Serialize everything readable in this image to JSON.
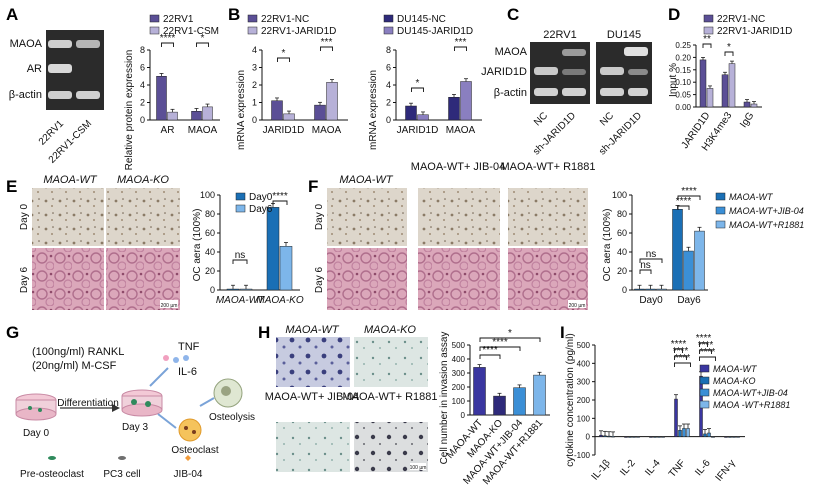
{
  "panels": [
    "A",
    "B",
    "C",
    "D",
    "E",
    "F",
    "G",
    "H",
    "I"
  ],
  "colors": {
    "dark_purple": "#5b4f96",
    "light_purple": "#b7b1d8",
    "mid_purple": "#8a7fc0",
    "navy": "#2e2a7a",
    "blue_dark": "#1a6fb5",
    "blue_mid": "#3b8fd6",
    "blue_light": "#7db6ea",
    "indigo": "#3a36a0",
    "wb_bg": "#2b2b2b",
    "tissue_pink": "#d9a3b7",
    "micro_bg": "#d8d2c7",
    "transwell_bg": "#c9cde0"
  },
  "A": {
    "blot_rows": [
      "MAOA",
      "AR",
      "β-actin"
    ],
    "lanes": [
      "22RV1",
      "22RV1-CSM"
    ],
    "legend": [
      "22RV1",
      "22RV1-CSM"
    ],
    "ylabel": "Relative protein expression",
    "sig": [
      "****",
      "*"
    ]
  },
  "B": {
    "left_legend": [
      "22RV1-NC",
      "22RV1-JARID1D"
    ],
    "right_legend": [
      "DU145-NC",
      "DU145-JARID1D"
    ],
    "ylabel": "mRNA expression",
    "left_sig": [
      "*",
      "***"
    ],
    "right_sig": [
      "*",
      "***"
    ]
  },
  "C": {
    "headers": [
      "22RV1",
      "DU145"
    ],
    "blot_rows": [
      "MAOA",
      "JARID1D",
      "β-actin"
    ],
    "lanes": [
      "NC",
      "sh-JARID1D",
      "NC",
      "sh-JARID1D"
    ]
  },
  "D": {
    "legend": [
      "22RV1-NC",
      "22RV1-JARID1D"
    ],
    "ylabel": "Input %",
    "sig": [
      "**",
      "*"
    ]
  },
  "E": {
    "col_titles": [
      "MAOA-WT",
      "MAOA-KO"
    ],
    "row_labels": [
      "Day 0",
      "Day 6"
    ],
    "scale": "200 µm",
    "legend": [
      "Day0",
      "Day6"
    ],
    "ylabel": "OC aera (100%)",
    "sig": [
      "ns",
      "****"
    ]
  },
  "F": {
    "col_titles": [
      "MAOA-WT",
      "MAOA-WT+ JIB-04",
      "MAOA-WT+ R1881"
    ],
    "row_labels": [
      "Day 0",
      "Day 6"
    ],
    "scale": "200 µm",
    "legend": [
      "MAOA-WT",
      "MAOA-WT+JIB-04",
      "MAOA-WT+R1881"
    ],
    "ylabel": "OC aera (100%)",
    "sig": [
      "ns",
      "ns",
      "****",
      "****"
    ]
  },
  "G": {
    "lines": [
      "(100ng/ml) RANKL",
      "(20ng/ml) M-CSF"
    ],
    "tnf": "TNF",
    "il6": "IL-6",
    "differentiation": "Differentiation",
    "day0": "Day 0",
    "day3": "Day 3",
    "osteolysis": "Osteolysis",
    "osteoclast": "Osteoclast",
    "legend": [
      "Pre-osteoclast",
      "PC3 cell",
      "JIB-04"
    ]
  },
  "H": {
    "titles": [
      "MAOA-WT",
      "MAOA-KO",
      "MAOA-WT+ JIB-04",
      "MAOA-WT+ R1881"
    ],
    "scale": "100 µm",
    "ylabel": "Cell number in invasion assay",
    "sig": [
      "*",
      "****",
      "****"
    ]
  },
  "I": {
    "legend": [
      "MAOA-WT",
      "MAOA-KO",
      "MAOA-WT+JIB-04",
      "MAOA -WT+R1881"
    ],
    "ylabel": "cytokine concentration (pg/ml)",
    "sig": [
      "****",
      "****",
      "****",
      "****",
      "****",
      "****"
    ]
  },
  "chart_data": [
    {
      "panel": "A",
      "type": "bar",
      "categories": [
        "AR",
        "MAOA"
      ],
      "series": [
        {
          "name": "22RV1",
          "values": [
            5.0,
            1.0
          ]
        },
        {
          "name": "22RV1-CSM",
          "values": [
            0.9,
            1.5
          ]
        }
      ],
      "ylim": [
        0,
        8
      ],
      "yticks": [
        0,
        2,
        4,
        6,
        8
      ],
      "ylabel": "Relative protein expression"
    },
    {
      "panel": "B-left",
      "type": "bar",
      "categories": [
        "JARID1D",
        "MAOA"
      ],
      "series": [
        {
          "name": "22RV1-NC",
          "values": [
            1.1,
            0.85
          ]
        },
        {
          "name": "22RV1-JARID1D",
          "values": [
            0.35,
            2.15
          ]
        }
      ],
      "ylim": [
        0,
        4
      ],
      "yticks": [
        0,
        1,
        2,
        3,
        4
      ],
      "ylabel": "mRNA expression"
    },
    {
      "panel": "B-right",
      "type": "bar",
      "categories": [
        "JARID1D",
        "MAOA"
      ],
      "series": [
        {
          "name": "DU145-NC",
          "values": [
            1.6,
            2.6
          ]
        },
        {
          "name": "DU145-JARID1D",
          "values": [
            0.6,
            4.4
          ]
        }
      ],
      "ylim": [
        0,
        8
      ],
      "yticks": [
        0,
        2,
        4,
        6,
        8
      ],
      "ylabel": "mRNA expression"
    },
    {
      "panel": "D",
      "type": "bar",
      "categories": [
        "JARID1D",
        "H3K4me3",
        "IgG"
      ],
      "series": [
        {
          "name": "22RV1-NC",
          "values": [
            0.19,
            0.13,
            0.02
          ]
        },
        {
          "name": "22RV1-JARID1D",
          "values": [
            0.075,
            0.175,
            0.012
          ]
        }
      ],
      "ylim": [
        0,
        0.25
      ],
      "yticks": [
        0.0,
        0.05,
        0.1,
        0.15,
        0.2,
        0.25
      ],
      "ylabel": "Input %"
    },
    {
      "panel": "E",
      "type": "bar",
      "categories": [
        "MAOA-WT",
        "MAOA-KO"
      ],
      "series": [
        {
          "name": "Day0",
          "values": [
            1,
            87
          ]
        },
        {
          "name": "Day6",
          "values": [
            1,
            46
          ]
        }
      ],
      "ylim": [
        0,
        100
      ],
      "yticks": [
        0,
        20,
        40,
        60,
        80,
        100
      ],
      "ylabel": "OC aera (100%)"
    },
    {
      "panel": "F",
      "type": "bar",
      "categories": [
        "Day0",
        "Day6"
      ],
      "series": [
        {
          "name": "MAOA-WT",
          "values": [
            1,
            85
          ]
        },
        {
          "name": "MAOA-WT+JIB-04",
          "values": [
            1,
            41
          ]
        },
        {
          "name": "MAOA-WT+R1881",
          "values": [
            1,
            62
          ]
        }
      ],
      "ylim": [
        0,
        100
      ],
      "yticks": [
        0,
        20,
        40,
        60,
        80,
        100
      ],
      "ylabel": "OC aera (100%)"
    },
    {
      "panel": "H",
      "type": "bar",
      "categories": [
        "MAOA-WT",
        "MAOA-KO",
        "MAOA-WT+JIB-04",
        "MAOA-WT+R1881"
      ],
      "values": [
        340,
        135,
        195,
        285
      ],
      "ylim": [
        0,
        500
      ],
      "yticks": [
        0,
        100,
        200,
        300,
        400,
        500
      ],
      "ylabel": "Cell number in invasion assay"
    },
    {
      "panel": "I",
      "type": "bar",
      "categories": [
        "IL-1β",
        "IL-2",
        "IL-4",
        "TNF",
        "IL-6",
        "IFN-γ"
      ],
      "series": [
        {
          "name": "MAOA-WT",
          "values": [
            8,
            0,
            0,
            205,
            330,
            0
          ]
        },
        {
          "name": "MAOA-KO",
          "values": [
            5,
            0,
            0,
            35,
            15,
            0
          ]
        },
        {
          "name": "MAOA-WT+JIB-04",
          "values": [
            3,
            0,
            0,
            45,
            20,
            0
          ]
        },
        {
          "name": "MAOA -WT+R1881",
          "values": [
            2,
            0,
            0,
            45,
            0,
            0
          ]
        }
      ],
      "ylim": [
        -100,
        500
      ],
      "yticks": [
        -100,
        0,
        100,
        200,
        300,
        400,
        500
      ],
      "ylabel": "cytokine concentration (pg/ml)"
    }
  ]
}
